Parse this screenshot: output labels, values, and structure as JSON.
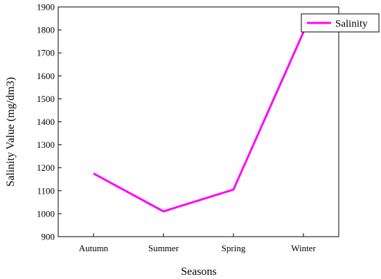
{
  "chart_data": {
    "type": "line",
    "categories": [
      "Autumn",
      "Summer",
      "Spring",
      "Winter"
    ],
    "series": [
      {
        "name": "Salinity",
        "values": [
          1175,
          1010,
          1105,
          1790
        ],
        "color": "#ff00ff"
      }
    ],
    "xlabel": "Seasons",
    "ylabel": "Salinity Value (mg/dm3)",
    "ylim": [
      900,
      1900
    ],
    "yticks": [
      900,
      1000,
      1100,
      1200,
      1300,
      1400,
      1500,
      1600,
      1700,
      1800,
      1900
    ],
    "grid": false,
    "legend_position": "top-right"
  }
}
